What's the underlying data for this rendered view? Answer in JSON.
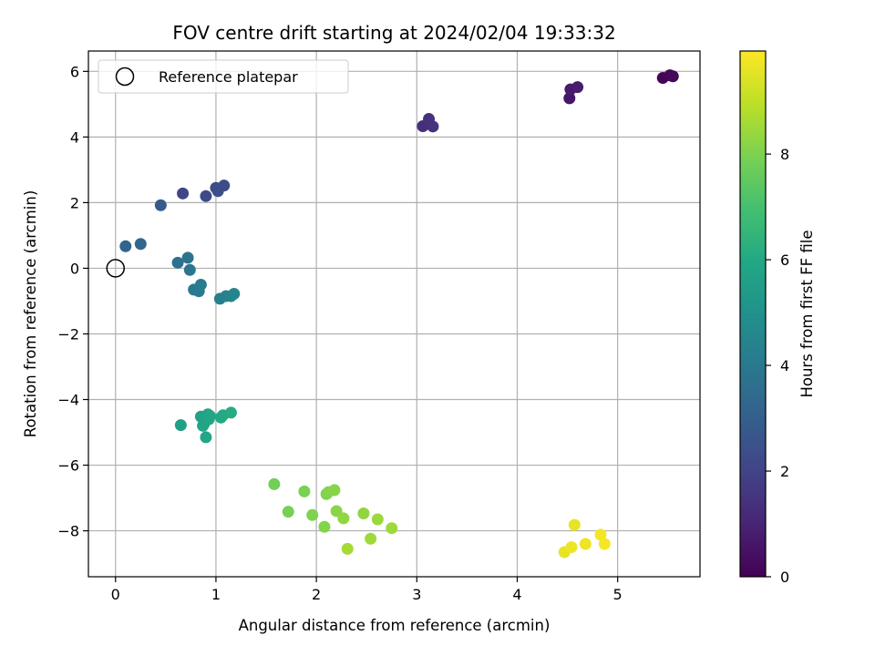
{
  "chart_data": {
    "type": "scatter",
    "title": "FOV centre drift starting at 2024/02/04 19:33:32",
    "xlabel": "Angular distance from reference (arcmin)",
    "ylabel": "Rotation from reference (arcmin)",
    "xlim": [
      -0.27,
      5.82
    ],
    "ylim": [
      -9.4,
      6.62
    ],
    "xticks": [
      0,
      1,
      2,
      3,
      4,
      5
    ],
    "yticks": [
      -8,
      -6,
      -4,
      -2,
      0,
      2,
      4,
      6
    ],
    "grid": true,
    "legend": {
      "placement": "top-left",
      "entries": [
        "Reference platepar"
      ]
    },
    "reference_point": {
      "x": 0,
      "y": 0,
      "label": "Reference platepar"
    },
    "colorbar": {
      "label": "Hours from first FF file",
      "range": [
        0,
        9.95
      ],
      "ticks": [
        0,
        2,
        4,
        6,
        8
      ],
      "colormap": "viridis"
    },
    "points": [
      {
        "x": 5.45,
        "y": 5.8,
        "h": 0.1
      },
      {
        "x": 5.52,
        "y": 5.88,
        "h": 0.15
      },
      {
        "x": 5.55,
        "y": 5.85,
        "h": 0.2
      },
      {
        "x": 4.52,
        "y": 5.18,
        "h": 0.6
      },
      {
        "x": 4.53,
        "y": 5.45,
        "h": 0.7
      },
      {
        "x": 4.6,
        "y": 5.52,
        "h": 0.8
      },
      {
        "x": 3.06,
        "y": 4.33,
        "h": 1.3
      },
      {
        "x": 3.12,
        "y": 4.55,
        "h": 1.4
      },
      {
        "x": 3.16,
        "y": 4.32,
        "h": 1.5
      },
      {
        "x": 0.67,
        "y": 2.28,
        "h": 2.05
      },
      {
        "x": 0.9,
        "y": 2.2,
        "h": 2.2
      },
      {
        "x": 1.0,
        "y": 2.45,
        "h": 2.3
      },
      {
        "x": 1.02,
        "y": 2.35,
        "h": 2.4
      },
      {
        "x": 1.08,
        "y": 2.52,
        "h": 2.3
      },
      {
        "x": 0.45,
        "y": 1.92,
        "h": 2.8
      },
      {
        "x": 0.1,
        "y": 0.67,
        "h": 3.2
      },
      {
        "x": 0.25,
        "y": 0.74,
        "h": 3.3
      },
      {
        "x": 0.62,
        "y": 0.17,
        "h": 3.7
      },
      {
        "x": 0.72,
        "y": 0.32,
        "h": 3.8
      },
      {
        "x": 0.74,
        "y": -0.05,
        "h": 3.9
      },
      {
        "x": 0.78,
        "y": -0.65,
        "h": 4.0
      },
      {
        "x": 0.83,
        "y": -0.7,
        "h": 4.05
      },
      {
        "x": 0.85,
        "y": -0.5,
        "h": 4.1
      },
      {
        "x": 1.04,
        "y": -0.93,
        "h": 4.2
      },
      {
        "x": 1.1,
        "y": -0.85,
        "h": 4.3
      },
      {
        "x": 1.15,
        "y": -0.85,
        "h": 4.4
      },
      {
        "x": 1.18,
        "y": -0.78,
        "h": 4.5
      },
      {
        "x": 0.65,
        "y": -4.78,
        "h": 5.6
      },
      {
        "x": 0.85,
        "y": -4.52,
        "h": 5.7
      },
      {
        "x": 0.87,
        "y": -4.8,
        "h": 5.8
      },
      {
        "x": 0.88,
        "y": -4.75,
        "h": 5.8
      },
      {
        "x": 0.9,
        "y": -5.15,
        "h": 5.9
      },
      {
        "x": 0.92,
        "y": -4.45,
        "h": 5.85
      },
      {
        "x": 0.93,
        "y": -4.6,
        "h": 5.9
      },
      {
        "x": 0.94,
        "y": -4.5,
        "h": 5.9
      },
      {
        "x": 1.05,
        "y": -4.55,
        "h": 6.0
      },
      {
        "x": 1.07,
        "y": -4.48,
        "h": 6.0
      },
      {
        "x": 1.15,
        "y": -4.4,
        "h": 6.1
      },
      {
        "x": 1.58,
        "y": -6.58,
        "h": 7.8
      },
      {
        "x": 1.72,
        "y": -7.42,
        "h": 7.9
      },
      {
        "x": 1.88,
        "y": -6.8,
        "h": 7.95
      },
      {
        "x": 1.96,
        "y": -7.52,
        "h": 8.0
      },
      {
        "x": 2.08,
        "y": -7.88,
        "h": 8.1
      },
      {
        "x": 2.1,
        "y": -6.88,
        "h": 8.05
      },
      {
        "x": 2.12,
        "y": -6.82,
        "h": 8.1
      },
      {
        "x": 2.18,
        "y": -6.76,
        "h": 8.15
      },
      {
        "x": 2.2,
        "y": -7.4,
        "h": 8.2
      },
      {
        "x": 2.27,
        "y": -7.62,
        "h": 8.3
      },
      {
        "x": 2.31,
        "y": -8.55,
        "h": 8.6
      },
      {
        "x": 2.47,
        "y": -7.47,
        "h": 8.3
      },
      {
        "x": 2.54,
        "y": -8.24,
        "h": 8.5
      },
      {
        "x": 2.61,
        "y": -7.65,
        "h": 8.45
      },
      {
        "x": 2.75,
        "y": -7.92,
        "h": 8.5
      },
      {
        "x": 4.47,
        "y": -8.65,
        "h": 9.6
      },
      {
        "x": 4.54,
        "y": -8.5,
        "h": 9.7
      },
      {
        "x": 4.57,
        "y": -7.82,
        "h": 9.6
      },
      {
        "x": 4.68,
        "y": -8.4,
        "h": 9.7
      },
      {
        "x": 4.83,
        "y": -8.12,
        "h": 9.8
      },
      {
        "x": 4.87,
        "y": -8.4,
        "h": 9.85
      }
    ]
  }
}
